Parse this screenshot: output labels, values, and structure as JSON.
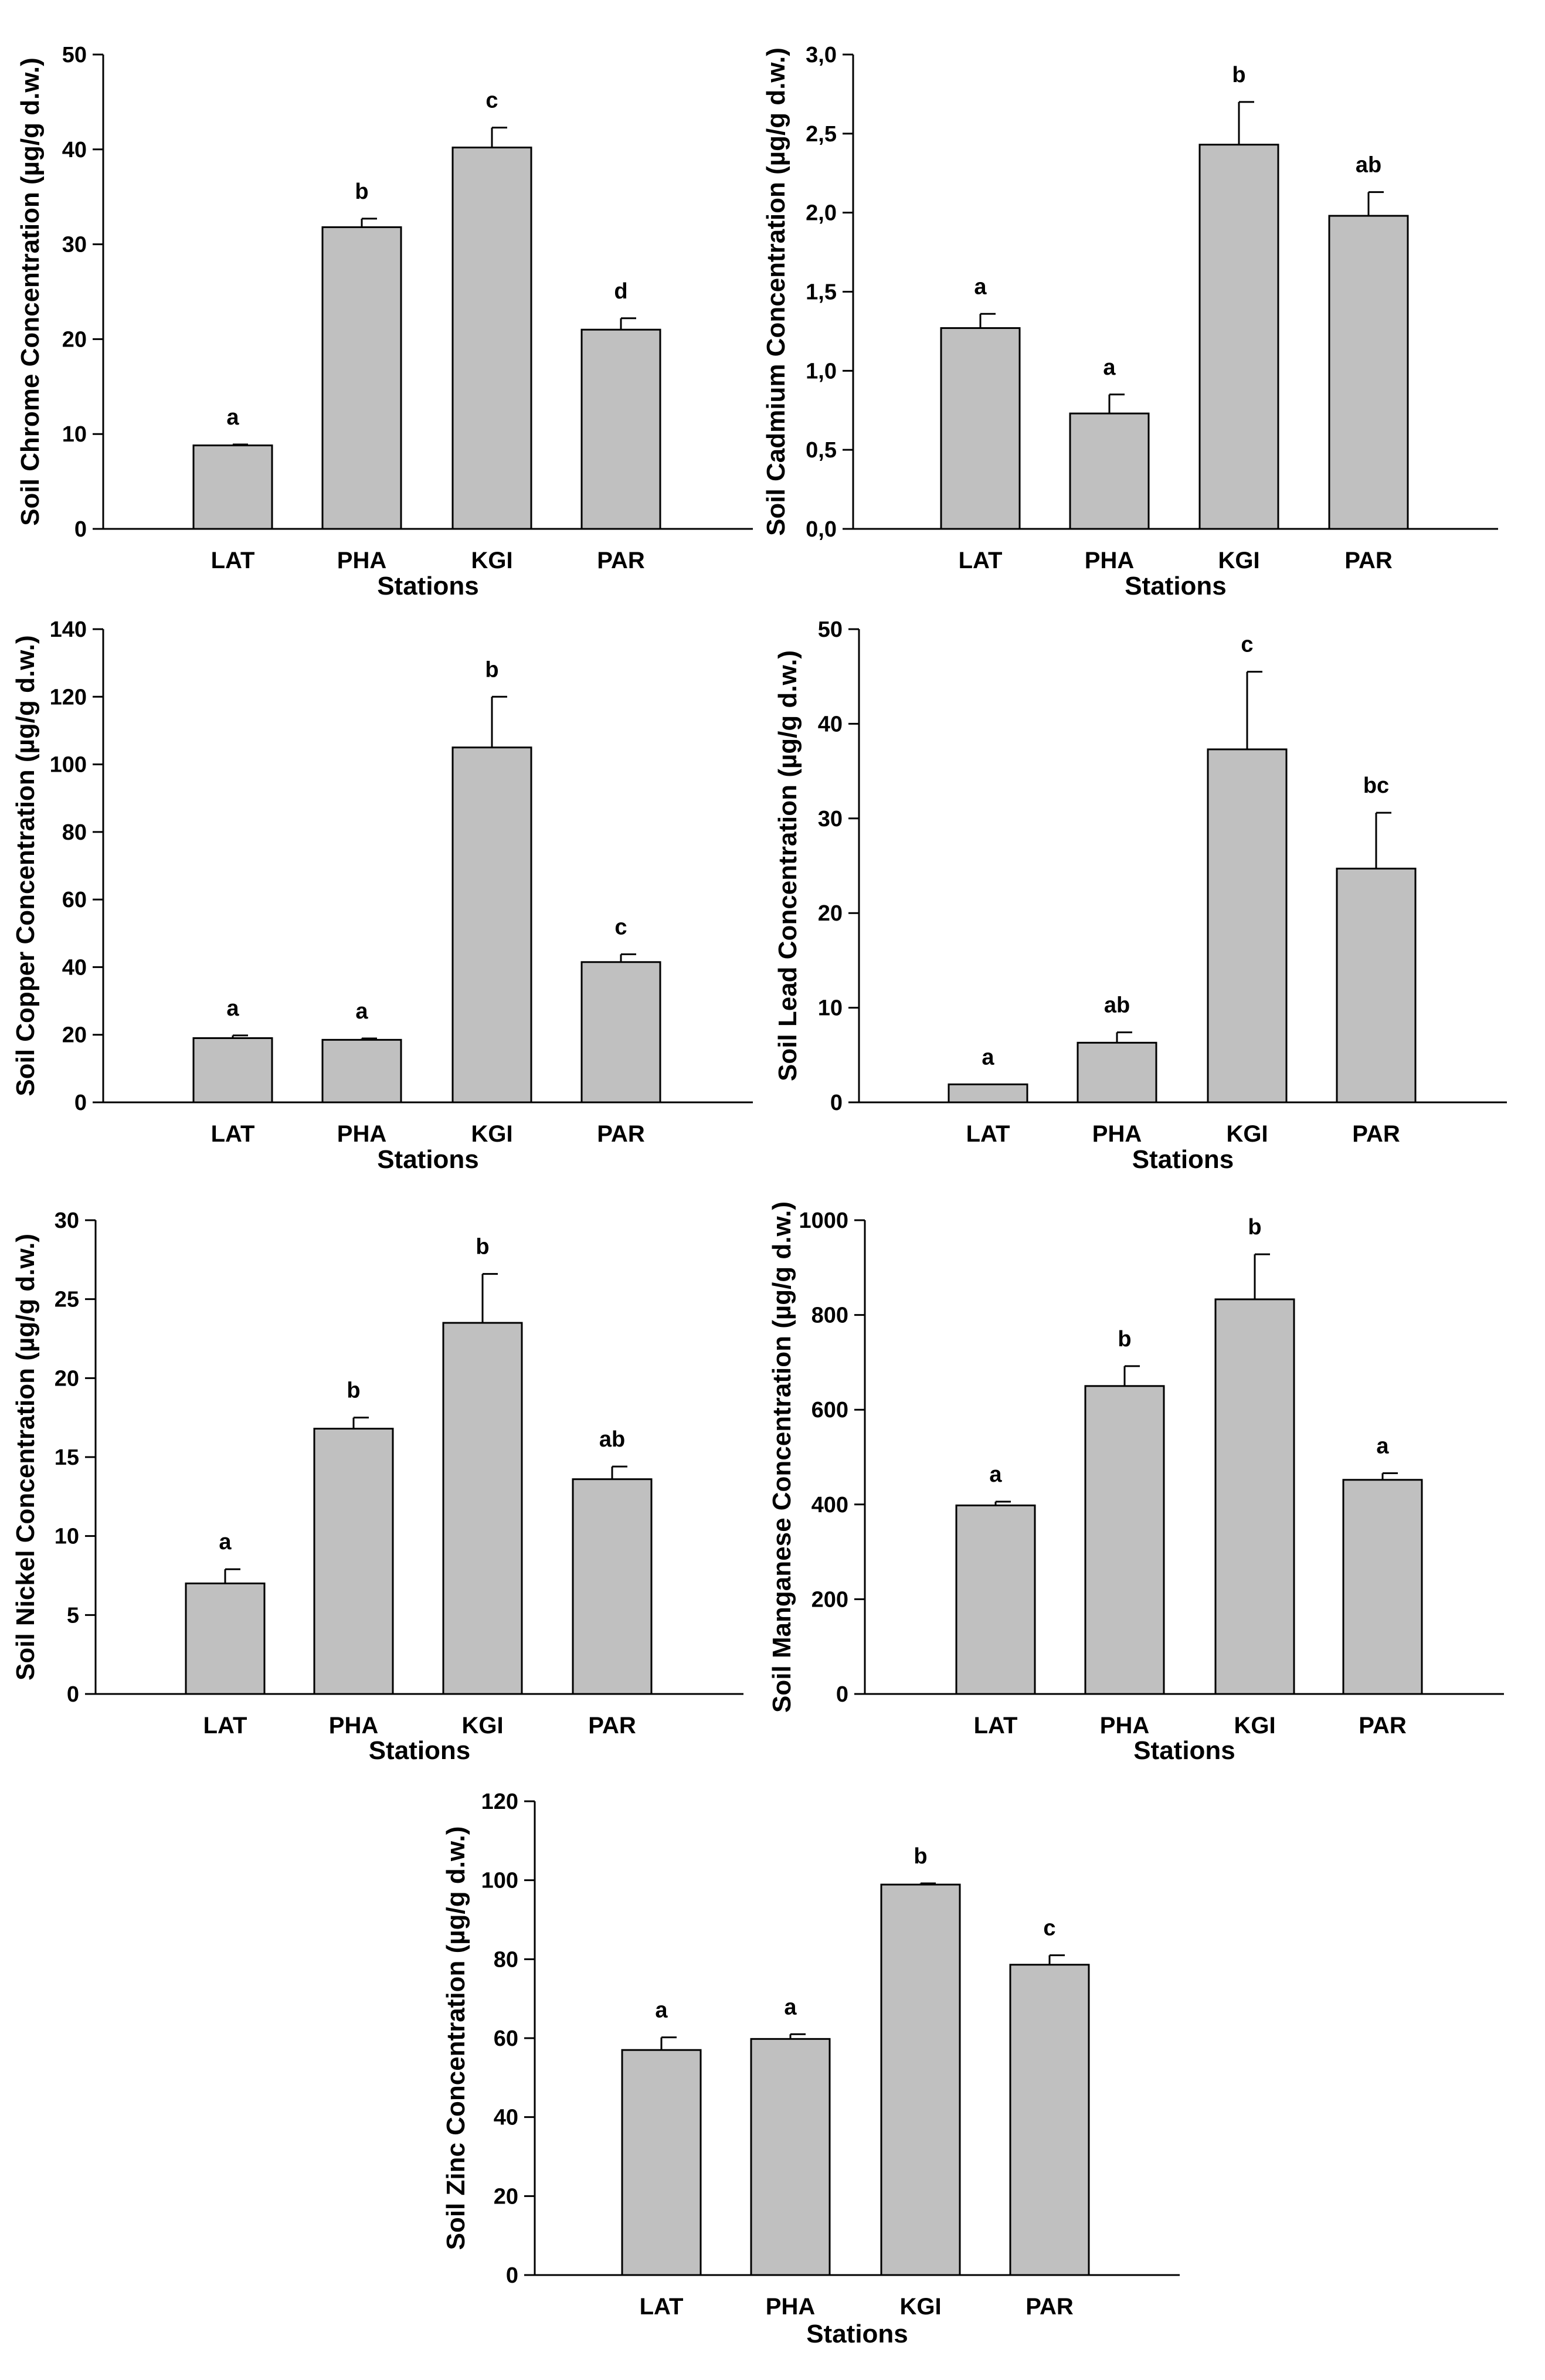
{
  "figure_title": "",
  "colors": {
    "bar_fill": "#c0c0c0",
    "bar_stroke": "#000000",
    "axis": "#000000"
  },
  "chart_data": [
    {
      "type": "bar",
      "title": "",
      "xlabel": "Stations",
      "ylabel": "Soil Chrome Concentration (µg/g d.w.)",
      "categories": [
        "LAT",
        "PHA",
        "KGI",
        "PAR"
      ],
      "values": [
        8.8,
        31.8,
        40.2,
        21.0
      ],
      "errors": [
        0.1,
        0.9,
        2.1,
        1.2
      ],
      "labels": [
        "a",
        "b",
        "c",
        "d"
      ],
      "ylim": [
        0,
        50
      ],
      "yticks": [
        0,
        10,
        20,
        30,
        40,
        50
      ],
      "ytick_labels": [
        "0",
        "10",
        "20",
        "30",
        "40",
        "50"
      ],
      "grid": false
    },
    {
      "type": "bar",
      "title": "",
      "xlabel": "Stations",
      "ylabel": "Soil Cadmium Concentration (µg/g d.w.)",
      "categories": [
        "LAT",
        "PHA",
        "KGI",
        "PAR"
      ],
      "values": [
        1.27,
        0.73,
        2.43,
        1.98
      ],
      "errors": [
        0.09,
        0.12,
        0.27,
        0.15
      ],
      "labels": [
        "a",
        "a",
        "b",
        "ab"
      ],
      "ylim": [
        0,
        3
      ],
      "yticks": [
        0,
        0.5,
        1,
        1.5,
        2,
        2.5,
        3
      ],
      "ytick_labels": [
        "0,0",
        "0,5",
        "1,0",
        "1,5",
        "2,0",
        "2,5",
        "3,0"
      ],
      "grid": false
    },
    {
      "type": "bar",
      "title": "",
      "xlabel": "Stations",
      "ylabel": "Soil Copper Concentration (µg/g d.w.)",
      "categories": [
        "LAT",
        "PHA",
        "KGI",
        "PAR"
      ],
      "values": [
        19.0,
        18.5,
        105.0,
        41.5
      ],
      "errors": [
        0.8,
        0.4,
        15.0,
        2.3
      ],
      "labels": [
        "a",
        "a",
        "b",
        "c"
      ],
      "ylim": [
        0,
        140
      ],
      "yticks": [
        0,
        20,
        40,
        60,
        80,
        100,
        120,
        140
      ],
      "ytick_labels": [
        "0",
        "20",
        "40",
        "60",
        "80",
        "100",
        "120",
        "140"
      ],
      "grid": false
    },
    {
      "type": "bar",
      "title": "",
      "xlabel": "Stations",
      "ylabel": "Soil Lead Concentration (µg/g d.w.)",
      "categories": [
        "LAT",
        "PHA",
        "KGI",
        "PAR"
      ],
      "values": [
        1.9,
        6.3,
        37.3,
        24.7
      ],
      "errors": [
        0.0,
        1.1,
        8.2,
        5.9
      ],
      "labels": [
        "a",
        "ab",
        "c",
        "bc"
      ],
      "ylim": [
        0,
        50
      ],
      "yticks": [
        0,
        10,
        20,
        30,
        40,
        50
      ],
      "ytick_labels": [
        "0",
        "10",
        "20",
        "30",
        "40",
        "50"
      ],
      "grid": false
    },
    {
      "type": "bar",
      "title": "",
      "xlabel": "Stations",
      "ylabel": "Soil Nickel Concentration (µg/g d.w.)",
      "categories": [
        "LAT",
        "PHA",
        "KGI",
        "PAR"
      ],
      "values": [
        7.0,
        16.8,
        23.5,
        13.6
      ],
      "errors": [
        0.9,
        0.7,
        3.1,
        0.8
      ],
      "labels": [
        "a",
        "b",
        "b",
        "ab"
      ],
      "ylim": [
        0,
        30
      ],
      "yticks": [
        0,
        5,
        10,
        15,
        20,
        25,
        30
      ],
      "ytick_labels": [
        "0",
        "5",
        "10",
        "15",
        "20",
        "25",
        "30"
      ],
      "grid": false
    },
    {
      "type": "bar",
      "title": "",
      "xlabel": "Stations",
      "ylabel": "Soil Manganese Concentration (µg/g d.w.)",
      "categories": [
        "LAT",
        "PHA",
        "KGI",
        "PAR"
      ],
      "values": [
        398,
        650,
        833,
        452
      ],
      "errors": [
        8,
        42,
        95,
        14
      ],
      "labels": [
        "a",
        "b",
        "b",
        "a"
      ],
      "ylim": [
        0,
        1000
      ],
      "yticks": [
        0,
        200,
        400,
        600,
        800,
        1000
      ],
      "ytick_labels": [
        "0",
        "200",
        "400",
        "600",
        "800",
        "1000"
      ],
      "grid": false
    },
    {
      "type": "bar",
      "title": "",
      "xlabel": "Stations",
      "ylabel": "Soil Zinc Concentration (µg/g d.w.)",
      "categories": [
        "LAT",
        "PHA",
        "KGI",
        "PAR"
      ],
      "values": [
        57.0,
        59.8,
        98.9,
        78.6
      ],
      "errors": [
        3.2,
        1.2,
        0.3,
        2.4
      ],
      "labels": [
        "a",
        "a",
        "b",
        "c"
      ],
      "ylim": [
        0,
        120
      ],
      "yticks": [
        0,
        20,
        40,
        60,
        80,
        100,
        120
      ],
      "ytick_labels": [
        "0",
        "20",
        "40",
        "60",
        "80",
        "100",
        "120"
      ],
      "grid": false
    }
  ]
}
